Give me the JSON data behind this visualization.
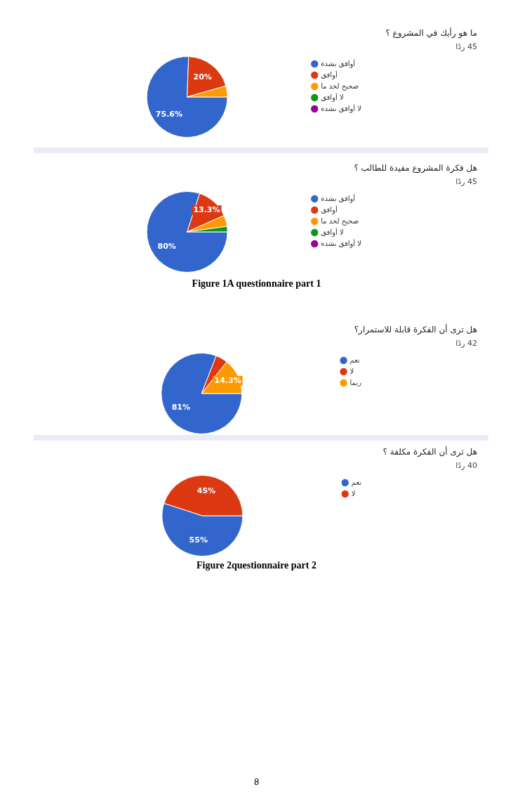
{
  "chart_data": [
    {
      "type": "pie",
      "title": "ما هو رأيك في المشروع ؟",
      "subtitle": "45 ردًا",
      "categories": [
        "أوافق بشدة",
        "أوافق",
        "صحيح لحد ما",
        "لا أوافق",
        "لا أوافق بشدة"
      ],
      "values": [
        75.6,
        20,
        4.4,
        0,
        0
      ],
      "colors": [
        "#3366cc",
        "#dc3912",
        "#ff9900",
        "#109618",
        "#990099"
      ],
      "value_labels": [
        "75.6%",
        "20%",
        null,
        null,
        null
      ],
      "legend": "right"
    },
    {
      "type": "pie",
      "title": "هل فكرة المشروع مفيدة للطالب ؟",
      "subtitle": "45 ردًا",
      "categories": [
        "أوافق بشدة",
        "أوافق",
        "صحيح لحد ما",
        "لا أوافق",
        "لا أوافق بشدة"
      ],
      "values": [
        80,
        13.3,
        4.4,
        2.2,
        0
      ],
      "colors": [
        "#3366cc",
        "#dc3912",
        "#ff9900",
        "#109618",
        "#990099"
      ],
      "value_labels": [
        "80%",
        "13.3%",
        null,
        null,
        null
      ],
      "legend": "right",
      "annotations": [
        "Figure 1A questionnaire part 1"
      ]
    },
    {
      "type": "pie",
      "title": "هل ترى أن الفكرة قابلة للاستمرار؟",
      "subtitle": "42 ردًا",
      "categories": [
        "نعم",
        "لا",
        "ربما"
      ],
      "values": [
        81,
        4.8,
        14.3
      ],
      "colors": [
        "#3366cc",
        "#dc3912",
        "#ff9900"
      ],
      "value_labels": [
        "81%",
        null,
        "14.3%"
      ],
      "legend": "right"
    },
    {
      "type": "pie",
      "title": "هل ترى أن الفكرة مكلفة ؟",
      "subtitle": "40 ردًا",
      "categories": [
        "نعم",
        "لا"
      ],
      "values": [
        55,
        45
      ],
      "colors": [
        "#3366cc",
        "#dc3912"
      ],
      "value_labels": [
        "55%",
        "45%"
      ],
      "legend": "right",
      "annotations": [
        "Figure 2questionnaire part 2",
        "8"
      ]
    }
  ]
}
